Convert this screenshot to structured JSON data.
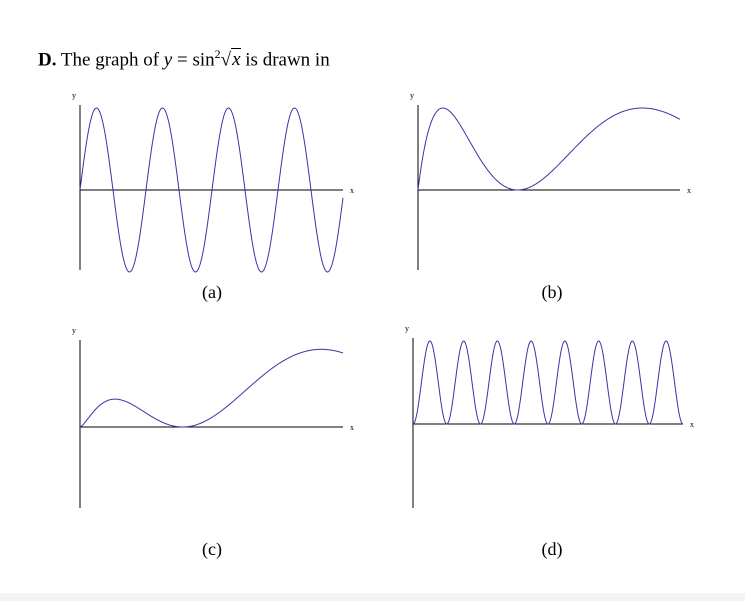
{
  "question": {
    "label": "D.",
    "text_before": "The graph of",
    "var_y": "y",
    "eq": "=",
    "func": "sin",
    "power": "2",
    "radicand": "x",
    "text_after": "is drawn in"
  },
  "colors": {
    "curve": "#3b33a8",
    "axes": "#000000"
  },
  "chart_data": [
    {
      "type": "line",
      "caption": "(a)",
      "xlabel": "x",
      "ylabel": "y",
      "shape": "sine oscillation about x-axis, 4 full periods, equal amplitude",
      "y_range": [
        -1,
        1
      ]
    },
    {
      "type": "line",
      "caption": "(b)",
      "xlabel": "x",
      "ylabel": "y",
      "shape": "two humps, touches zero once, widening (sin^2 of sqrt x)",
      "y_range": [
        0,
        1
      ]
    },
    {
      "type": "line",
      "caption": "(c)",
      "xlabel": "x",
      "ylabel": "y",
      "shape": "small hump then larger hump, growing amplitude",
      "y_range": [
        0,
        1
      ]
    },
    {
      "type": "line",
      "caption": "(d)",
      "xlabel": "x",
      "ylabel": "y",
      "shape": "8 equal humps, non-negative (sin^2 x)",
      "y_range": [
        0,
        1
      ]
    }
  ]
}
